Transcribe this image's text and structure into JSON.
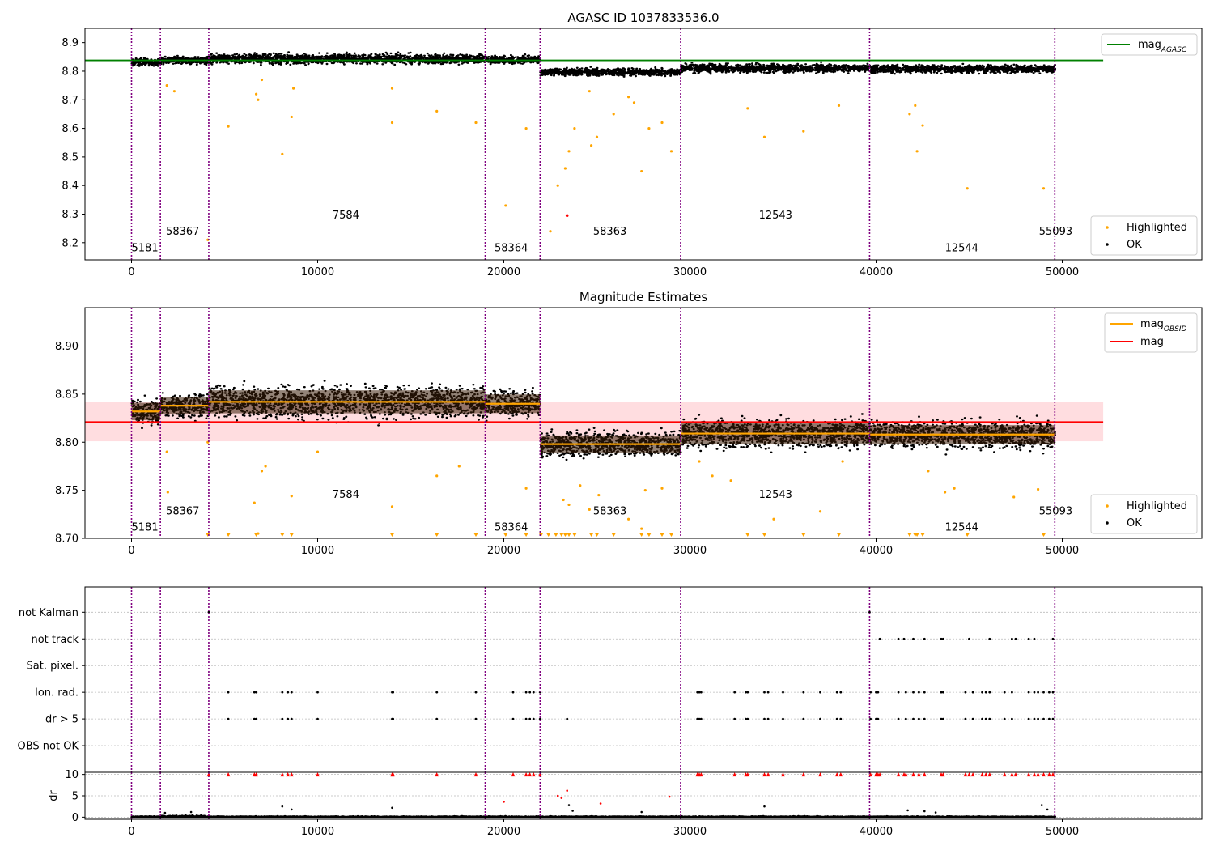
{
  "chart_data": [
    {
      "type": "scatter",
      "title": "AGASC ID 1037833536.0",
      "xlabel": "",
      "ylabel": "",
      "xlim": [
        -2500,
        57500
      ],
      "ylim": [
        8.14,
        8.95
      ],
      "xticks": [
        0,
        10000,
        20000,
        30000,
        40000,
        50000
      ],
      "xtick_labels": [
        "0",
        "10000",
        "20000",
        "30000",
        "40000",
        "50000"
      ],
      "yticks": [
        8.2,
        8.3,
        8.4,
        8.5,
        8.6,
        8.7,
        8.8,
        8.9
      ],
      "ytick_labels": [
        "8.2",
        "8.3",
        "8.4",
        "8.5",
        "8.6",
        "8.7",
        "8.8",
        "8.9"
      ],
      "reference_lines": [
        {
          "name": "mag$_{AGASC}$",
          "y": 8.838,
          "x_range": [
            -2500,
            52200
          ],
          "color": "#008000"
        }
      ],
      "obsid_boundaries": [
        0,
        1550,
        4150,
        19000,
        21950,
        29500,
        39650,
        49600
      ],
      "obsid_labels": [
        {
          "text": "5181",
          "x": 0,
          "y": 8.17
        },
        {
          "text": "58367",
          "x": 1850,
          "y": 8.228
        },
        {
          "text": "7584",
          "x": 10800,
          "y": 8.285
        },
        {
          "text": "58364",
          "x": 19500,
          "y": 8.17
        },
        {
          "text": "58363",
          "x": 24800,
          "y": 8.228
        },
        {
          "text": "12543",
          "x": 33700,
          "y": 8.285
        },
        {
          "text": "12544",
          "x": 43700,
          "y": 8.17
        },
        {
          "text": "55093",
          "x": 48750,
          "y": 8.228
        }
      ],
      "segments": [
        {
          "x0": 0,
          "x1": 1550,
          "mean": 8.832,
          "spread": 0.012
        },
        {
          "x0": 1550,
          "x1": 4150,
          "mean": 8.838,
          "spread": 0.012
        },
        {
          "x0": 4150,
          "x1": 19000,
          "mean": 8.843,
          "spread": 0.016
        },
        {
          "x0": 19000,
          "x1": 21950,
          "mean": 8.84,
          "spread": 0.013
        },
        {
          "x0": 21950,
          "x1": 29500,
          "mean": 8.797,
          "spread": 0.012
        },
        {
          "x0": 29500,
          "x1": 39650,
          "mean": 8.81,
          "spread": 0.014
        },
        {
          "x0": 39650,
          "x1": 49600,
          "mean": 8.808,
          "spread": 0.013
        }
      ],
      "highlighted_outliers": [
        [
          5200,
          8.607
        ],
        [
          6700,
          8.72
        ],
        [
          6800,
          8.7
        ],
        [
          8100,
          8.51
        ],
        [
          8600,
          8.64
        ],
        [
          14000,
          8.62
        ],
        [
          16400,
          8.66
        ],
        [
          18500,
          8.62
        ],
        [
          20100,
          8.33
        ],
        [
          21200,
          8.6
        ],
        [
          22500,
          8.24
        ],
        [
          22900,
          8.4
        ],
        [
          23300,
          8.46
        ],
        [
          23500,
          8.52
        ],
        [
          23800,
          8.6
        ],
        [
          24700,
          8.54
        ],
        [
          25000,
          8.57
        ],
        [
          25900,
          8.65
        ],
        [
          27400,
          8.45
        ],
        [
          27800,
          8.6
        ],
        [
          28500,
          8.62
        ],
        [
          29000,
          8.52
        ],
        [
          33100,
          8.67
        ],
        [
          34000,
          8.57
        ],
        [
          36100,
          8.59
        ],
        [
          38000,
          8.68
        ],
        [
          41800,
          8.65
        ],
        [
          42100,
          8.68
        ],
        [
          42200,
          8.52
        ],
        [
          42500,
          8.61
        ],
        [
          44900,
          8.39
        ],
        [
          49000,
          8.39
        ],
        [
          4100,
          8.21
        ],
        [
          1900,
          8.75
        ],
        [
          2300,
          8.73
        ],
        [
          7000,
          8.77
        ],
        [
          8700,
          8.74
        ],
        [
          14000,
          8.74
        ],
        [
          24600,
          8.73
        ],
        [
          26700,
          8.71
        ],
        [
          27000,
          8.69
        ]
      ],
      "red_points": [
        [
          23400,
          8.295
        ]
      ],
      "legend": {
        "position": "lower-right",
        "entries": [
          "Highlighted",
          "OK"
        ]
      },
      "legend_lines": {
        "position": "upper-right",
        "entries": [
          "mag$_{AGASC}$"
        ]
      },
      "colors": {
        "ok": "#000000",
        "highlighted": "#ffa500",
        "reference": "#008000",
        "boundary": "#800080"
      }
    },
    {
      "type": "scatter",
      "title": "Magnitude Estimates",
      "xlabel": "",
      "ylabel": "",
      "xlim": [
        -2500,
        57500
      ],
      "ylim": [
        8.7,
        8.94
      ],
      "xticks": [
        0,
        10000,
        20000,
        30000,
        40000,
        50000
      ],
      "xtick_labels": [
        "0",
        "10000",
        "20000",
        "30000",
        "40000",
        "50000"
      ],
      "yticks": [
        8.7,
        8.75,
        8.8,
        8.85,
        8.9
      ],
      "ytick_labels": [
        "8.70",
        "8.75",
        "8.80",
        "8.85",
        "8.90"
      ],
      "reference_lines": [
        {
          "name": "mag",
          "y": 8.821,
          "x_range": [
            -2500,
            52200
          ],
          "color": "#ff0000"
        }
      ],
      "reference_band": {
        "y0": 8.801,
        "y1": 8.842,
        "x_range": [
          -2500,
          52200
        ],
        "color": "#ffdde0"
      },
      "obsid_mag_line_name": "mag$_{OBSID}$",
      "obsid_boundaries": [
        0,
        1550,
        4150,
        19000,
        21950,
        29500,
        39650,
        49600
      ],
      "obsid_labels": [
        {
          "text": "5181",
          "x": 0,
          "y": 8.708
        },
        {
          "text": "58367",
          "x": 1850,
          "y": 8.725
        },
        {
          "text": "7584",
          "x": 10800,
          "y": 8.742
        },
        {
          "text": "58364",
          "x": 19500,
          "y": 8.708
        },
        {
          "text": "58363",
          "x": 24800,
          "y": 8.725
        },
        {
          "text": "12543",
          "x": 33700,
          "y": 8.742
        },
        {
          "text": "12544",
          "x": 43700,
          "y": 8.708
        },
        {
          "text": "55093",
          "x": 48750,
          "y": 8.725
        }
      ],
      "segments": [
        {
          "x0": 0,
          "x1": 1550,
          "mean": 8.832,
          "spread": 0.012
        },
        {
          "x0": 1550,
          "x1": 4150,
          "mean": 8.838,
          "spread": 0.012
        },
        {
          "x0": 4150,
          "x1": 19000,
          "mean": 8.842,
          "spread": 0.016
        },
        {
          "x0": 19000,
          "x1": 21950,
          "mean": 8.84,
          "spread": 0.013
        },
        {
          "x0": 21950,
          "x1": 29500,
          "mean": 8.798,
          "spread": 0.012
        },
        {
          "x0": 29500,
          "x1": 39650,
          "mean": 8.809,
          "spread": 0.014
        },
        {
          "x0": 39650,
          "x1": 49600,
          "mean": 8.808,
          "spread": 0.013
        }
      ],
      "highlighted_outliers": [
        [
          1900,
          8.79
        ],
        [
          1950,
          8.748
        ],
        [
          4100,
          8.8
        ],
        [
          6600,
          8.737
        ],
        [
          6800,
          8.705
        ],
        [
          7000,
          8.77
        ],
        [
          7200,
          8.775
        ],
        [
          8600,
          8.744
        ],
        [
          10000,
          8.79
        ],
        [
          14000,
          8.733
        ],
        [
          16400,
          8.765
        ],
        [
          17600,
          8.775
        ],
        [
          21200,
          8.752
        ],
        [
          23200,
          8.74
        ],
        [
          23500,
          8.735
        ],
        [
          24100,
          8.755
        ],
        [
          24600,
          8.73
        ],
        [
          25100,
          8.745
        ],
        [
          26700,
          8.72
        ],
        [
          27400,
          8.71
        ],
        [
          27600,
          8.75
        ],
        [
          28500,
          8.752
        ],
        [
          30500,
          8.78
        ],
        [
          31200,
          8.765
        ],
        [
          32200,
          8.76
        ],
        [
          34500,
          8.72
        ],
        [
          37000,
          8.728
        ],
        [
          38200,
          8.78
        ],
        [
          42800,
          8.77
        ],
        [
          43700,
          8.748
        ],
        [
          44200,
          8.752
        ],
        [
          47400,
          8.743
        ],
        [
          48700,
          8.751
        ]
      ],
      "lower_bound_markers": [
        4100,
        5200,
        6700,
        8100,
        8600,
        14000,
        16400,
        18500,
        20100,
        21200,
        22000,
        22400,
        22800,
        23100,
        23300,
        23500,
        23800,
        24700,
        25000,
        25900,
        27400,
        27800,
        28500,
        29000,
        33100,
        34000,
        36100,
        38000,
        41800,
        42100,
        42200,
        42500,
        44900,
        49000
      ],
      "legend": {
        "position": "lower-right",
        "entries": [
          "Highlighted",
          "OK"
        ]
      },
      "legend_lines": {
        "position": "upper-right",
        "entries": [
          "mag$_{OBSID}$",
          "mag"
        ]
      },
      "colors": {
        "ok": "#000000",
        "highlighted": "#ffa500",
        "obsid_mag": "#ffa500",
        "reference": "#ff0000",
        "band": "#ffdde0",
        "boundary": "#800080"
      }
    },
    {
      "type": "scatter",
      "title": "",
      "xlabel": "",
      "ylabel": "",
      "xlim": [
        -2500,
        57500
      ],
      "categories": [
        "OBS not OK",
        "dr > 5",
        "Ion. rad.",
        "Sat. pixel.",
        "not track",
        "not Kalman"
      ],
      "xticks": [
        0,
        10000,
        20000,
        30000,
        40000,
        50000
      ],
      "obsid_boundaries": [
        0,
        1550,
        4150,
        19000,
        21950,
        29500,
        39650,
        49600
      ],
      "flags": {
        "not Kalman": [
          4150,
          39650
        ],
        "not track": [
          40200,
          41200,
          41500,
          42000,
          42600,
          43500,
          43600,
          45000,
          46100,
          47300,
          47500,
          48200,
          48500,
          49500
        ],
        "Ion. rad.": [
          5200,
          6600,
          6700,
          8100,
          8400,
          8600,
          10000,
          14000,
          14050,
          16400,
          18500,
          20500,
          21200,
          21400,
          21600,
          21950,
          30400,
          30500,
          30600,
          32400,
          33000,
          33100,
          34000,
          34200,
          35000,
          36100,
          37000,
          37900,
          38100,
          39700,
          40000,
          40100,
          41200,
          41600,
          42000,
          42300,
          42600,
          43500,
          43600,
          44800,
          45200,
          45700,
          45900,
          46100,
          46900,
          47300,
          48200,
          48500,
          48700,
          49000,
          49300,
          49500
        ],
        "dr > 5": [
          5200,
          6600,
          6700,
          8100,
          8400,
          8600,
          10000,
          14000,
          14050,
          16400,
          18500,
          20500,
          21200,
          21400,
          21600,
          21950,
          23400,
          30400,
          30500,
          30600,
          32400,
          33000,
          33100,
          34000,
          34200,
          35000,
          36100,
          37000,
          37900,
          38100,
          39700,
          40000,
          40100,
          41200,
          41600,
          42000,
          42300,
          42600,
          43500,
          43600,
          44800,
          45200,
          45700,
          45900,
          46100,
          46900,
          47300,
          48200,
          48500,
          48700,
          49000,
          49300,
          49500
        ]
      },
      "colors": {
        "flag": "#000000",
        "boundary": "#800080",
        "grid": "#bbbbbb"
      }
    },
    {
      "type": "scatter",
      "title": "",
      "xlabel": "",
      "ylabel": "dr",
      "xlim": [
        -2500,
        57500
      ],
      "ylim": [
        -0.5,
        10.5
      ],
      "xticks": [
        0,
        10000,
        20000,
        30000,
        40000,
        50000
      ],
      "xtick_labels": [
        "0",
        "10000",
        "20000",
        "30000",
        "40000",
        "50000"
      ],
      "yticks": [
        0,
        5,
        10
      ],
      "ytick_labels": [
        "0",
        "5",
        "10"
      ],
      "obsid_boundaries": [
        0,
        1550,
        4150,
        19000,
        21950,
        29500,
        39650,
        49600
      ],
      "clipped_at_10": [
        4150,
        5200,
        6600,
        6700,
        8100,
        8400,
        8600,
        10000,
        14000,
        14050,
        16400,
        18500,
        20500,
        21200,
        21400,
        21600,
        21950,
        30400,
        30500,
        30600,
        32400,
        33000,
        33100,
        34000,
        34200,
        35000,
        36100,
        37000,
        37900,
        38100,
        39700,
        40000,
        40100,
        40200,
        41200,
        41500,
        41600,
        42000,
        42300,
        42600,
        43500,
        43600,
        44800,
        45000,
        45200,
        45700,
        45900,
        46100,
        46900,
        47300,
        47500,
        48200,
        48500,
        48700,
        49000,
        49300,
        49500
      ],
      "red_points": [
        [
          20000,
          3.6
        ],
        [
          23400,
          6.2
        ],
        [
          23100,
          4.5
        ],
        [
          22900,
          5.0
        ],
        [
          25200,
          3.2
        ],
        [
          28900,
          4.8
        ]
      ],
      "scattered_points": [
        [
          1800,
          1.0
        ],
        [
          3200,
          1.2
        ],
        [
          8100,
          2.5
        ],
        [
          8600,
          1.8
        ],
        [
          14000,
          2.2
        ],
        [
          23500,
          2.8
        ],
        [
          23700,
          1.5
        ],
        [
          27400,
          1.2
        ],
        [
          34000,
          2.5
        ],
        [
          42600,
          1.4
        ],
        [
          48900,
          2.8
        ],
        [
          49200,
          1.8
        ],
        [
          41700,
          1.6
        ],
        [
          43200,
          1.1
        ]
      ],
      "colors": {
        "ok": "#000000",
        "red": "#ff0000",
        "boundary": "#800080",
        "grid": "#bbbbbb"
      }
    }
  ]
}
